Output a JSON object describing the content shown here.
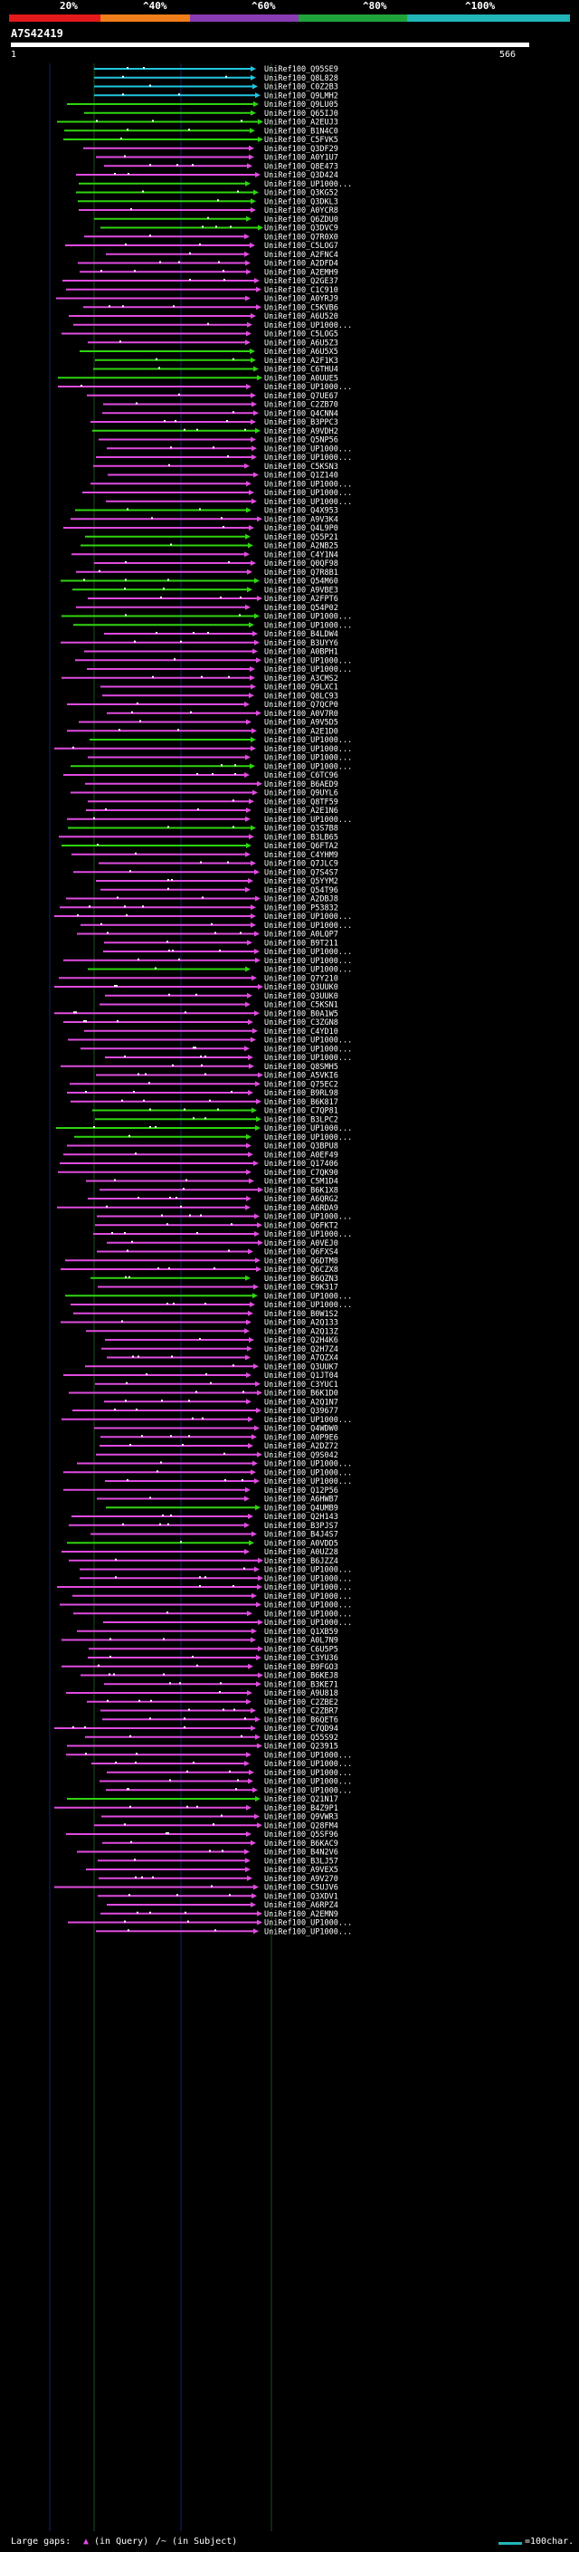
{
  "scale": {
    "labels": [
      "20%",
      "^40%",
      "^60%",
      "^80%",
      "^100%"
    ],
    "colors": [
      "#e3191b",
      "#f07e1a",
      "#8a3cb4",
      "#1fa43b",
      "#21b6b8"
    ]
  },
  "query": {
    "id": "A7S42419",
    "range_start": "1",
    "range_end": "566"
  },
  "hit_colors": {
    "cyan": "#21c6e0",
    "green": "#2fd40f",
    "magenta": "#e04be0"
  },
  "hits": [
    {
      "label": "UniRef100_Q95SE9",
      "color": "cyan"
    },
    {
      "label": "UniRef100_Q8L828",
      "color": "cyan"
    },
    {
      "label": "UniRef100_C0Z2B3",
      "color": "cyan"
    },
    {
      "label": "UniRef100_Q9LMH2",
      "color": "cyan"
    },
    {
      "label": "UniRef100_Q9LU05",
      "color": "green"
    },
    {
      "label": "UniRef100_Q65IJ0",
      "color": "green"
    },
    {
      "label": "UniRef100_A2EUJ3",
      "color": "green"
    },
    {
      "label": "UniRef100_B1N4C0",
      "color": "green"
    },
    {
      "label": "UniRef100_C5FVK5",
      "color": "green"
    },
    {
      "label": "UniRef100_Q3DF29",
      "color": "magenta"
    },
    {
      "label": "UniRef100_A0Y1U7",
      "color": "magenta"
    },
    {
      "label": "UniRef100_Q8E473",
      "color": "magenta"
    },
    {
      "label": "UniRef100_Q3D424",
      "color": "magenta"
    },
    {
      "label": "UniRef100_UP1000...",
      "color": "green"
    },
    {
      "label": "UniRef100_Q3KG52",
      "color": "green"
    },
    {
      "label": "UniRef100_Q3DKL3",
      "color": "green"
    },
    {
      "label": "UniRef100_A0YCR8",
      "color": "magenta"
    },
    {
      "label": "UniRef100_Q6ZDU0",
      "color": "green"
    },
    {
      "label": "UniRef100_Q3DVC9",
      "color": "green"
    },
    {
      "label": "UniRef100_Q7R0X0",
      "color": "magenta"
    },
    {
      "label": "UniRef100_C5LOG7",
      "color": "magenta"
    },
    {
      "label": "UniRef100_A2FNC4",
      "color": "magenta"
    },
    {
      "label": "UniRef100_A2DFD4",
      "color": "magenta"
    },
    {
      "label": "UniRef100_A2EMH9",
      "color": "magenta"
    },
    {
      "label": "UniRef100_Q2GE37",
      "color": "magenta"
    },
    {
      "label": "UniRef100_C1C910",
      "color": "magenta"
    },
    {
      "label": "UniRef100_A0YRJ9",
      "color": "magenta"
    },
    {
      "label": "UniRef100_C5KVB6",
      "color": "magenta"
    },
    {
      "label": "UniRef100_A6U520",
      "color": "magenta"
    },
    {
      "label": "UniRef100_UP1000...",
      "color": "magenta"
    },
    {
      "label": "UniRef100_C5LOG5",
      "color": "magenta"
    },
    {
      "label": "UniRef100_A6U5Z3",
      "color": "magenta"
    },
    {
      "label": "UniRef100_A6U5X5",
      "color": "green"
    },
    {
      "label": "UniRef100_A2F1K3",
      "color": "green"
    },
    {
      "label": "UniRef100_C6THU4",
      "color": "green"
    },
    {
      "label": "UniRef100_A0UUE5",
      "color": "green"
    },
    {
      "label": "UniRef100_UP1000...",
      "color": "magenta"
    },
    {
      "label": "UniRef100_Q7UE67",
      "color": "magenta"
    },
    {
      "label": "UniRef100_C2ZB70",
      "color": "magenta"
    },
    {
      "label": "UniRef100_Q4CNN4",
      "color": "magenta"
    },
    {
      "label": "UniRef100_B3PPC3",
      "color": "magenta"
    },
    {
      "label": "UniRef100_A9VDH2",
      "color": "green"
    },
    {
      "label": "UniRef100_Q5NP56",
      "color": "magenta"
    },
    {
      "label": "UniRef100_UP1000...",
      "color": "magenta"
    },
    {
      "label": "UniRef100_UP1000...",
      "color": "magenta"
    },
    {
      "label": "UniRef100_C5KSN3",
      "color": "magenta"
    },
    {
      "label": "UniRef100_Q1Z140",
      "color": "magenta"
    },
    {
      "label": "UniRef100_UP1000...",
      "color": "magenta"
    },
    {
      "label": "UniRef100_UP1000...",
      "color": "magenta"
    },
    {
      "label": "UniRef100_UP1000...",
      "color": "magenta"
    },
    {
      "label": "UniRef100_Q4X953",
      "color": "green"
    },
    {
      "label": "UniRef100_A9V3K4",
      "color": "magenta"
    },
    {
      "label": "UniRef100_Q4L9P0",
      "color": "magenta"
    },
    {
      "label": "UniRef100_Q55P21",
      "color": "green"
    },
    {
      "label": "UniRef100_A2NB25",
      "color": "green"
    },
    {
      "label": "UniRef100_C4Y1N4",
      "color": "magenta"
    },
    {
      "label": "UniRef100_Q0QF98",
      "color": "magenta"
    },
    {
      "label": "UniRef100_Q7R8B1",
      "color": "magenta"
    },
    {
      "label": "UniRef100_Q54M60",
      "color": "green"
    },
    {
      "label": "UniRef100_A9VBE3",
      "color": "green"
    },
    {
      "label": "UniRef100_A2FPT6",
      "color": "magenta"
    },
    {
      "label": "UniRef100_Q54P02",
      "color": "magenta"
    },
    {
      "label": "UniRef100_UP1000...",
      "color": "green"
    },
    {
      "label": "UniRef100_UP1000...",
      "color": "green"
    },
    {
      "label": "UniRef100_B4LDW4",
      "color": "magenta"
    },
    {
      "label": "UniRef100_B3UYY6",
      "color": "magenta"
    },
    {
      "label": "UniRef100_A0BPH1",
      "color": "magenta"
    },
    {
      "label": "UniRef100_UP1000...",
      "color": "magenta"
    },
    {
      "label": "UniRef100_UP1000...",
      "color": "magenta"
    },
    {
      "label": "UniRef100_A3CMS2",
      "color": "magenta"
    },
    {
      "label": "UniRef100_Q9LXC1",
      "color": "magenta"
    },
    {
      "label": "UniRef100_Q8LC93",
      "color": "magenta"
    },
    {
      "label": "UniRef100_Q7QCP0",
      "color": "magenta"
    },
    {
      "label": "UniRef100_A0V7R0",
      "color": "magenta"
    },
    {
      "label": "UniRef100_A9V5D5",
      "color": "magenta"
    },
    {
      "label": "UniRef100_A2E1D0",
      "color": "magenta"
    },
    {
      "label": "UniRef100_UP1000...",
      "color": "green"
    },
    {
      "label": "UniRef100_UP1000...",
      "color": "magenta"
    },
    {
      "label": "UniRef100_UP1000...",
      "color": "magenta"
    },
    {
      "label": "UniRef100_UP1000...",
      "color": "green"
    },
    {
      "label": "UniRef100_C6TC96",
      "color": "magenta"
    },
    {
      "label": "UniRef100_B6AED9",
      "color": "magenta"
    },
    {
      "label": "UniRef100_Q9UYL6",
      "color": "magenta"
    },
    {
      "label": "UniRef100_Q8TF59",
      "color": "magenta"
    },
    {
      "label": "UniRef100_A2E1N6",
      "color": "magenta"
    },
    {
      "label": "UniRef100_UP1000...",
      "color": "magenta"
    },
    {
      "label": "UniRef100_Q3S7B8",
      "color": "green"
    },
    {
      "label": "UniRef100_B3LB65",
      "color": "magenta"
    },
    {
      "label": "UniRef100_Q6FTA2",
      "color": "green"
    },
    {
      "label": "UniRef100_C4YHM9",
      "color": "magenta"
    },
    {
      "label": "UniRef100_Q7JLC9",
      "color": "magenta"
    },
    {
      "label": "UniRef100_Q7S4S7",
      "color": "magenta"
    },
    {
      "label": "UniRef100_Q5YYM2",
      "color": "magenta"
    },
    {
      "label": "UniRef100_Q54T96",
      "color": "magenta"
    },
    {
      "label": "UniRef100_A2DBJ8",
      "color": "magenta"
    },
    {
      "label": "UniRef100_P53832",
      "color": "magenta"
    },
    {
      "label": "UniRef100_UP1000...",
      "color": "magenta"
    },
    {
      "label": "UniRef100_UP1000...",
      "color": "magenta"
    },
    {
      "label": "UniRef100_A0LQP7",
      "color": "magenta"
    },
    {
      "label": "UniRef100_B9T211",
      "color": "magenta"
    },
    {
      "label": "UniRef100_UP1000...",
      "color": "magenta"
    },
    {
      "label": "UniRef100_UP1000...",
      "color": "magenta"
    },
    {
      "label": "UniRef100_UP1000...",
      "color": "green"
    },
    {
      "label": "UniRef100_Q7Y210",
      "color": "magenta"
    },
    {
      "label": "UniRef100_Q3UUK0",
      "color": "magenta"
    },
    {
      "label": "UniRef100_Q3UUK0",
      "color": "magenta"
    },
    {
      "label": "UniRef100_C5KSN1",
      "color": "magenta"
    },
    {
      "label": "UniRef100_B0A1W5",
      "color": "magenta"
    },
    {
      "label": "UniRef100_C3ZGN8",
      "color": "magenta"
    },
    {
      "label": "UniRef100_C4YD10",
      "color": "magenta"
    },
    {
      "label": "UniRef100_UP1000...",
      "color": "magenta"
    },
    {
      "label": "UniRef100_UP1000...",
      "color": "magenta"
    },
    {
      "label": "UniRef100_UP1000...",
      "color": "magenta"
    },
    {
      "label": "UniRef100_Q8SMH5",
      "color": "magenta"
    },
    {
      "label": "UniRef100_A5VKI6",
      "color": "magenta"
    },
    {
      "label": "UniRef100_Q75EC2",
      "color": "magenta"
    },
    {
      "label": "UniRef100_B9RL98",
      "color": "magenta"
    },
    {
      "label": "UniRef100_B6K817",
      "color": "magenta"
    },
    {
      "label": "UniRef100_C7QP81",
      "color": "green"
    },
    {
      "label": "UniRef100_B3LPC2",
      "color": "green"
    },
    {
      "label": "UniRef100_UP1000...",
      "color": "green"
    },
    {
      "label": "UniRef100_UP1000...",
      "color": "green"
    },
    {
      "label": "UniRef100_Q3BPU8",
      "color": "magenta"
    },
    {
      "label": "UniRef100_A0EF49",
      "color": "magenta"
    },
    {
      "label": "UniRef100_Q17406",
      "color": "magenta"
    },
    {
      "label": "UniRef100_C7QK90",
      "color": "magenta"
    },
    {
      "label": "UniRef100_C5M1D4",
      "color": "magenta"
    },
    {
      "label": "UniRef100_B6K1X8",
      "color": "magenta"
    },
    {
      "label": "UniRef100_A6QRG2",
      "color": "magenta"
    },
    {
      "label": "UniRef100_A6RDA9",
      "color": "magenta"
    },
    {
      "label": "UniRef100_UP1000...",
      "color": "magenta"
    },
    {
      "label": "UniRef100_Q6FKT2",
      "color": "magenta"
    },
    {
      "label": "UniRef100_UP1000...",
      "color": "magenta"
    },
    {
      "label": "UniRef100_A0VEJ0",
      "color": "magenta"
    },
    {
      "label": "UniRef100_Q6FXS4",
      "color": "magenta"
    },
    {
      "label": "UniRef100_Q6DTM8",
      "color": "magenta"
    },
    {
      "label": "UniRef100_Q6CZX8",
      "color": "magenta"
    },
    {
      "label": "UniRef100_B6QZN3",
      "color": "green"
    },
    {
      "label": "UniRef100_C9K317",
      "color": "magenta"
    },
    {
      "label": "UniRef100_UP1000...",
      "color": "green"
    },
    {
      "label": "UniRef100_UP1000...",
      "color": "magenta"
    },
    {
      "label": "UniRef100_B0W1S2",
      "color": "magenta"
    },
    {
      "label": "UniRef100_A2Q133",
      "color": "magenta"
    },
    {
      "label": "UniRef100_A2Q13Z",
      "color": "magenta"
    },
    {
      "label": "UniRef100_Q2H4K6",
      "color": "magenta"
    },
    {
      "label": "UniRef100_Q2H7Z4",
      "color": "magenta"
    },
    {
      "label": "UniRef100_A7QZX4",
      "color": "magenta"
    },
    {
      "label": "UniRef100_Q3UUK7",
      "color": "magenta"
    },
    {
      "label": "UniRef100_Q1JT04",
      "color": "magenta"
    },
    {
      "label": "UniRef100_C3YUC1",
      "color": "magenta"
    },
    {
      "label": "UniRef100_B6K1D0",
      "color": "magenta"
    },
    {
      "label": "UniRef100_A2Q1N7",
      "color": "magenta"
    },
    {
      "label": "UniRef100_Q39677",
      "color": "magenta"
    },
    {
      "label": "UniRef100_UP1000...",
      "color": "magenta"
    },
    {
      "label": "UniRef100_Q4WDW0",
      "color": "magenta"
    },
    {
      "label": "UniRef100_A0P9E6",
      "color": "magenta"
    },
    {
      "label": "UniRef100_A2DZ72",
      "color": "magenta"
    },
    {
      "label": "UniRef100_Q9S042",
      "color": "magenta"
    },
    {
      "label": "UniRef100_UP1000...",
      "color": "magenta"
    },
    {
      "label": "UniRef100_UP1000...",
      "color": "magenta"
    },
    {
      "label": "UniRef100_UP1000...",
      "color": "magenta"
    },
    {
      "label": "UniRef100_Q12P56",
      "color": "magenta"
    },
    {
      "label": "UniRef100_A6HWB7",
      "color": "magenta"
    },
    {
      "label": "UniRef100_Q4UMB9",
      "color": "green"
    },
    {
      "label": "UniRef100_Q2H143",
      "color": "magenta"
    },
    {
      "label": "UniRef100_B3PJS7",
      "color": "magenta"
    },
    {
      "label": "UniRef100_B4J4S7",
      "color": "magenta"
    },
    {
      "label": "UniRef100_A0VDD5",
      "color": "green"
    },
    {
      "label": "UniRef100_A0UZ28",
      "color": "magenta"
    },
    {
      "label": "UniRef100_B6JZZ4",
      "color": "magenta"
    },
    {
      "label": "UniRef100_UP1000...",
      "color": "magenta"
    },
    {
      "label": "UniRef100_UP1000...",
      "color": "magenta"
    },
    {
      "label": "UniRef100_UP1000...",
      "color": "magenta"
    },
    {
      "label": "UniRef100_UP1000...",
      "color": "magenta"
    },
    {
      "label": "UniRef100_UP1000...",
      "color": "magenta"
    },
    {
      "label": "UniRef100_UP1000...",
      "color": "magenta"
    },
    {
      "label": "UniRef100_UP1000...",
      "color": "magenta"
    },
    {
      "label": "UniRef100_Q1XB59",
      "color": "magenta"
    },
    {
      "label": "UniRef100_A0L7N9",
      "color": "magenta"
    },
    {
      "label": "UniRef100_C6U5P5",
      "color": "magenta"
    },
    {
      "label": "UniRef100_C3YU36",
      "color": "magenta"
    },
    {
      "label": "UniRef100_B9FGO3",
      "color": "magenta"
    },
    {
      "label": "UniRef100_B6KEJ8",
      "color": "magenta"
    },
    {
      "label": "UniRef100_B3KE71",
      "color": "magenta"
    },
    {
      "label": "UniRef100_A9U818",
      "color": "magenta"
    },
    {
      "label": "UniRef100_C2ZBE2",
      "color": "magenta"
    },
    {
      "label": "UniRef100_C2ZBR7",
      "color": "magenta"
    },
    {
      "label": "UniRef100_B6QET6",
      "color": "magenta"
    },
    {
      "label": "UniRef100_C7QD94",
      "color": "magenta"
    },
    {
      "label": "UniRef100_Q55S92",
      "color": "magenta"
    },
    {
      "label": "UniRef100_Q23915",
      "color": "magenta"
    },
    {
      "label": "UniRef100_UP1000...",
      "color": "magenta"
    },
    {
      "label": "UniRef100_UP1000...",
      "color": "magenta"
    },
    {
      "label": "UniRef100_UP1000...",
      "color": "magenta"
    },
    {
      "label": "UniRef100_UP1000...",
      "color": "magenta"
    },
    {
      "label": "UniRef100_UP1000...",
      "color": "magenta"
    },
    {
      "label": "UniRef100_Q21N17",
      "color": "green"
    },
    {
      "label": "UniRef100_B4Z9P1",
      "color": "magenta"
    },
    {
      "label": "UniRef100_Q9VWR3",
      "color": "magenta"
    },
    {
      "label": "UniRef100_Q28FM4",
      "color": "magenta"
    },
    {
      "label": "UniRef100_Q5SF96",
      "color": "magenta"
    },
    {
      "label": "UniRef100_B6KAC9",
      "color": "magenta"
    },
    {
      "label": "UniRef100_B4N2V6",
      "color": "magenta"
    },
    {
      "label": "UniRef100_B3LJ57",
      "color": "magenta"
    },
    {
      "label": "UniRef100_A9VEX5",
      "color": "magenta"
    },
    {
      "label": "UniRef100_A9V270",
      "color": "magenta"
    },
    {
      "label": "UniRef100_C5UJV6",
      "color": "magenta"
    },
    {
      "label": "UniRef100_Q3XDV1",
      "color": "magenta"
    },
    {
      "label": "UniRef100_A6RPZ4",
      "color": "magenta"
    },
    {
      "label": "UniRef100_A2EMN9",
      "color": "magenta"
    },
    {
      "label": "UniRef100_UP1000...",
      "color": "magenta"
    },
    {
      "label": "UniRef100_UP1000...",
      "color": "magenta"
    }
  ],
  "footer": {
    "gap_text_1": "Large gaps:",
    "gap_text_2": "(in Query)",
    "gap_text_3": "/~ (in Subject)",
    "legend_text": "=100char."
  }
}
